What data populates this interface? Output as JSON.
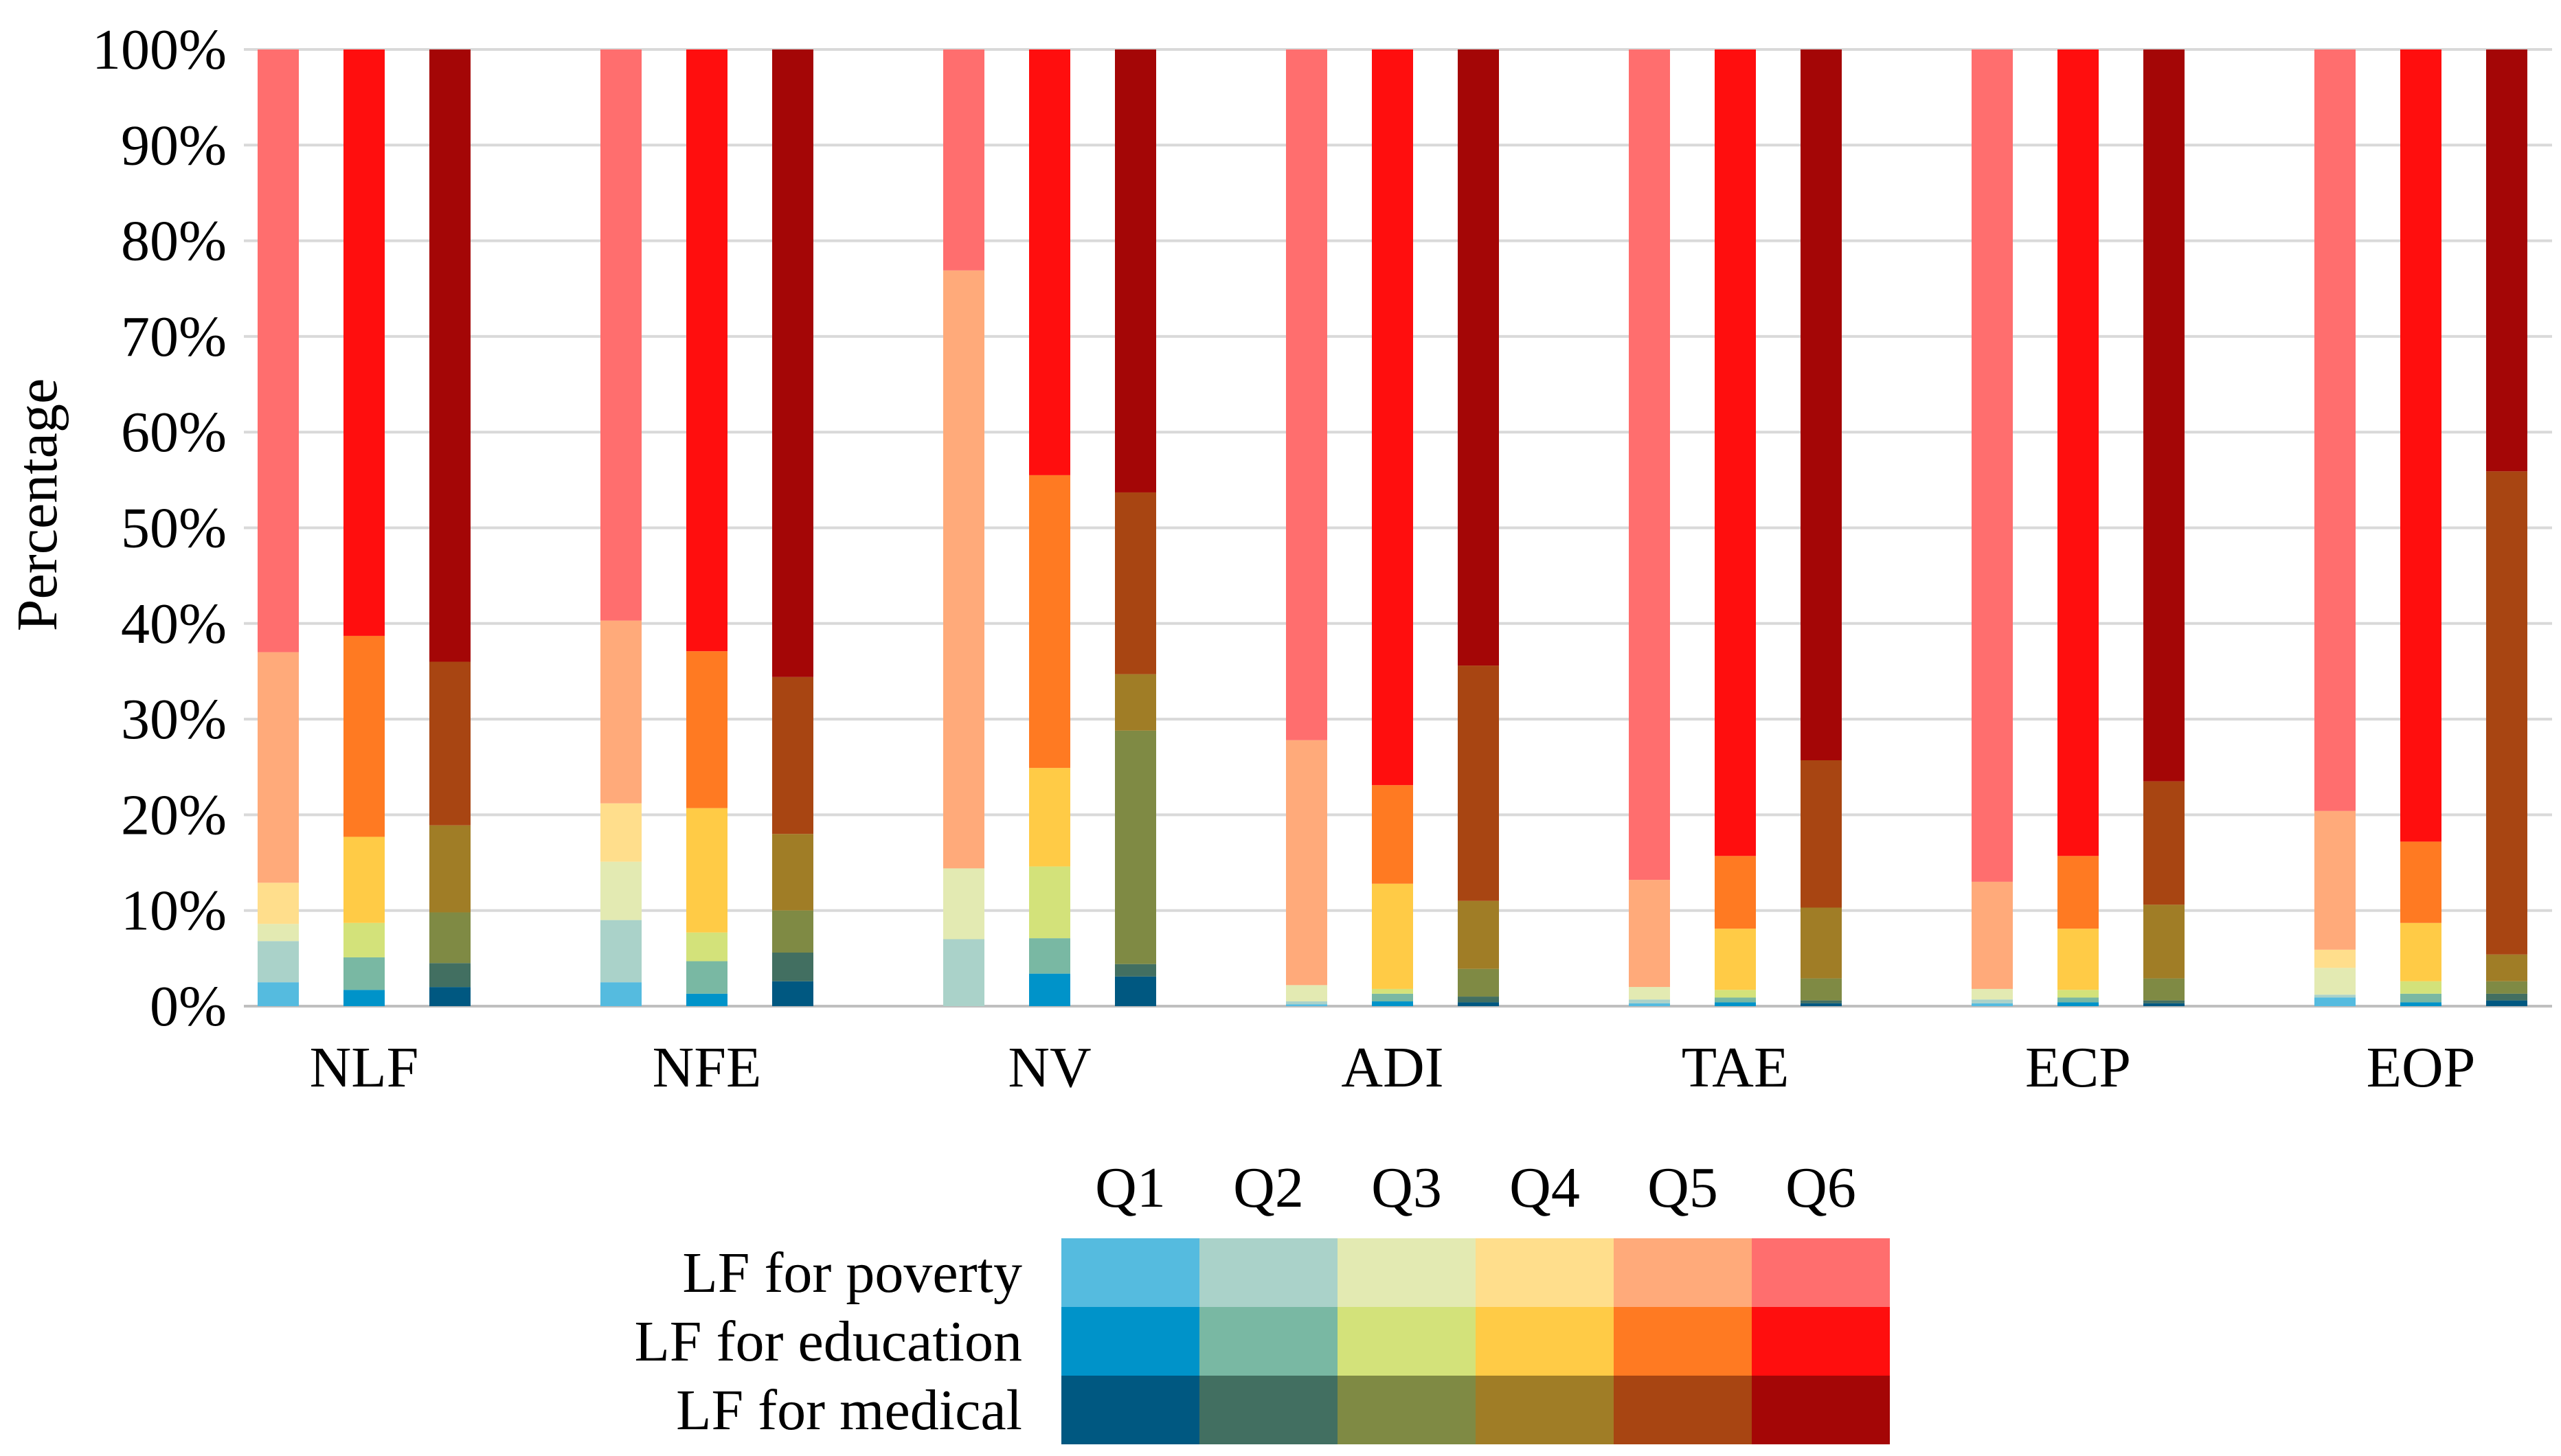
{
  "chart_data": {
    "type": "bar",
    "stacked": true,
    "normalized": true,
    "title": "",
    "xlabel": "",
    "ylabel": "Percentage",
    "ylim": [
      0,
      100
    ],
    "y_ticks": [
      "0%",
      "10%",
      "20%",
      "30%",
      "40%",
      "50%",
      "60%",
      "70%",
      "80%",
      "90%",
      "100%"
    ],
    "grid": true,
    "categories": [
      "NLF",
      "NFE",
      "NV",
      "ADI",
      "TAE",
      "ECP",
      "EOP"
    ],
    "quantiles": [
      "Q1",
      "Q2",
      "Q3",
      "Q4",
      "Q5",
      "Q6"
    ],
    "series": [
      {
        "name": "LF for poverty",
        "colors": [
          "#55BBDF",
          "#AAD2C9",
          "#E3EAB2",
          "#FFDE8C",
          "#FFAA7A",
          "#FF6E6E"
        ],
        "values": [
          [
            2.5,
            4.3,
            1.8,
            4.3,
            24.1,
            63.0
          ],
          [
            2.5,
            6.5,
            6.1,
            6.1,
            19.1,
            59.7
          ],
          [
            0.0,
            7.0,
            7.4,
            0.0,
            62.5,
            23.1
          ],
          [
            0.2,
            0.3,
            1.7,
            0.0,
            25.6,
            72.2
          ],
          [
            0.3,
            0.4,
            1.3,
            0.0,
            11.2,
            86.8
          ],
          [
            0.3,
            0.4,
            1.1,
            0.0,
            11.2,
            87.0
          ],
          [
            0.9,
            0.3,
            2.8,
            1.9,
            14.5,
            79.6
          ]
        ]
      },
      {
        "name": "LF for education",
        "colors": [
          "#0093C9",
          "#79B8A3",
          "#D3E27A",
          "#FFCB46",
          "#FF7A22",
          "#FF0E0E"
        ],
        "values": [
          [
            1.7,
            3.4,
            3.6,
            9.0,
            21.0,
            61.3
          ],
          [
            1.3,
            3.4,
            3.0,
            13.0,
            16.4,
            62.9
          ],
          [
            3.4,
            3.7,
            7.5,
            10.3,
            30.6,
            44.5
          ],
          [
            0.5,
            0.8,
            0.5,
            11.0,
            10.3,
            76.9
          ],
          [
            0.4,
            0.5,
            0.8,
            6.4,
            7.6,
            84.3
          ],
          [
            0.4,
            0.5,
            0.8,
            6.4,
            7.6,
            84.3
          ],
          [
            0.4,
            0.9,
            1.3,
            6.1,
            8.5,
            82.8
          ]
        ]
      },
      {
        "name": "LF for medical",
        "colors": [
          "#005881",
          "#426F61",
          "#7F8A44",
          "#A07D26",
          "#A84512",
          "#A40606"
        ],
        "values": [
          [
            2.0,
            2.5,
            5.3,
            9.1,
            17.1,
            64.0
          ],
          [
            2.6,
            3.0,
            4.4,
            8.0,
            16.4,
            65.6
          ],
          [
            3.1,
            1.3,
            24.4,
            5.9,
            19.0,
            46.3
          ],
          [
            0.4,
            0.6,
            2.9,
            7.1,
            24.6,
            64.4
          ],
          [
            0.3,
            0.3,
            2.3,
            7.4,
            15.4,
            74.3
          ],
          [
            0.3,
            0.3,
            2.3,
            7.7,
            12.9,
            76.5
          ],
          [
            0.6,
            0.7,
            1.3,
            2.8,
            50.5,
            44.1
          ]
        ]
      }
    ]
  }
}
